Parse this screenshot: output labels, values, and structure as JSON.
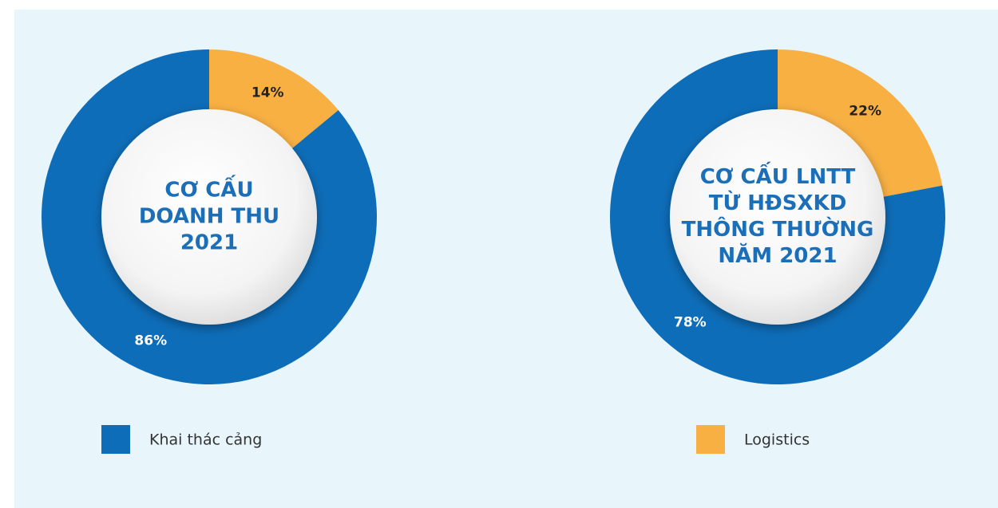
{
  "chart_data": [
    {
      "type": "pie",
      "title": [
        "CƠ CẤU",
        "DOANH THU",
        "2021"
      ],
      "values": [
        14,
        86
      ],
      "value_labels": [
        "14%",
        "86%"
      ]
    },
    {
      "type": "pie",
      "title": [
        "CƠ CẤU LNTT",
        "TỪ HĐSXKD",
        "THÔNG THƯỜNG",
        "NĂM 2021"
      ],
      "values": [
        22,
        78
      ],
      "value_labels": [
        "22%",
        "78%"
      ]
    }
  ],
  "legend": [
    {
      "name": "Logistics",
      "color": "#f8b043"
    },
    {
      "name": "Khai thác cảng",
      "color": "#0e6db8"
    }
  ]
}
